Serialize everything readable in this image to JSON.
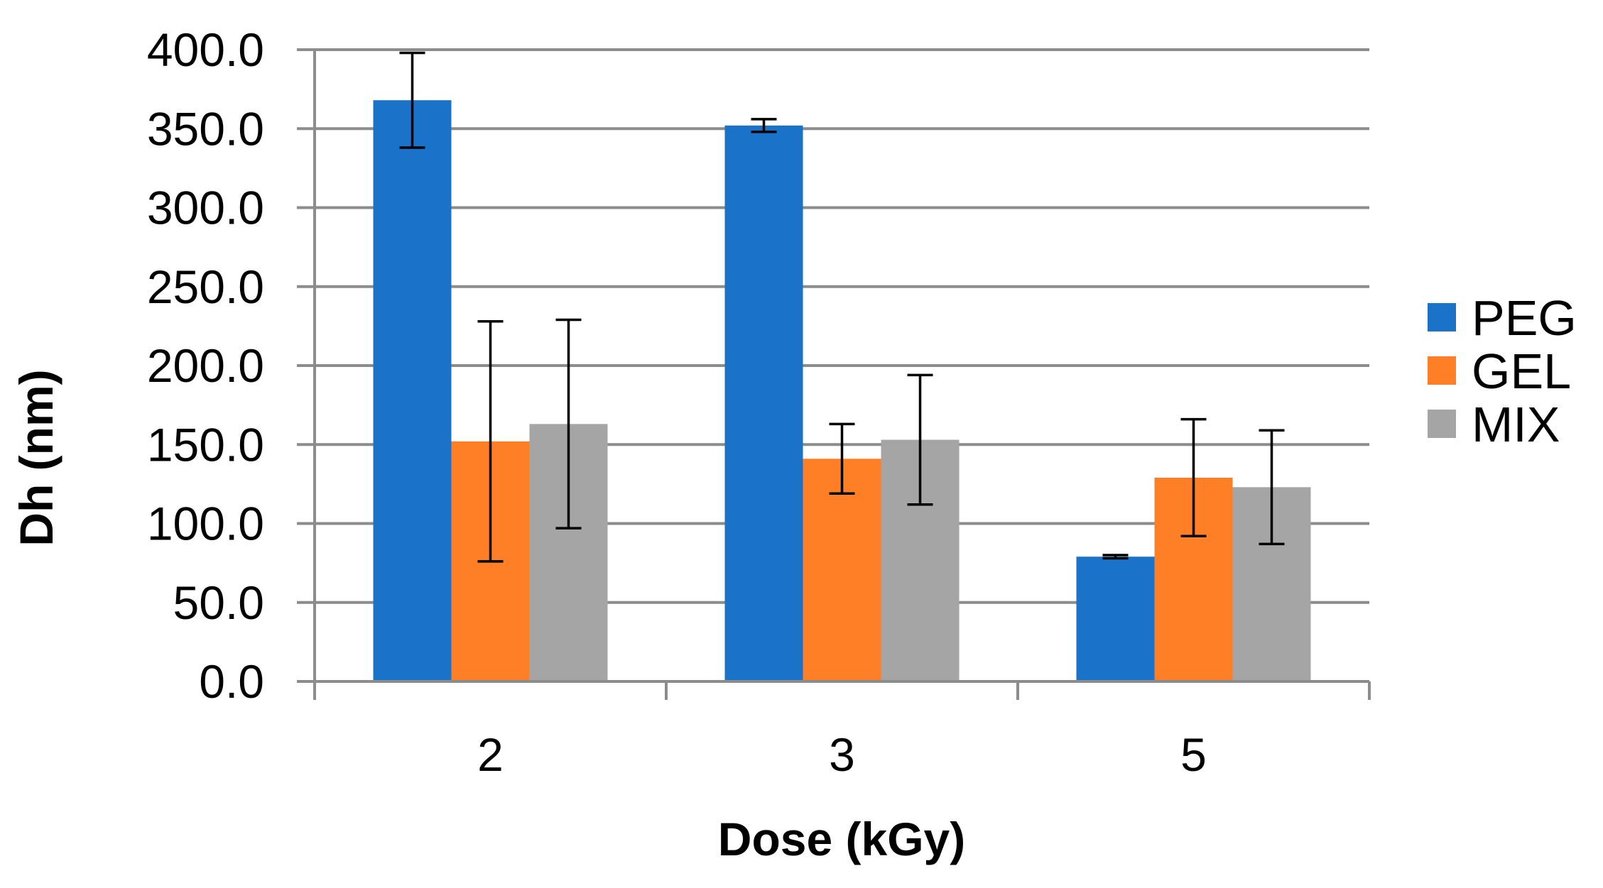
{
  "chart_data": {
    "type": "bar",
    "title": "",
    "xlabel": "Dose (kGy)",
    "ylabel": "Dh (nm)",
    "categories": [
      "2",
      "3",
      "5"
    ],
    "ylim": [
      0,
      400
    ],
    "ytick_step": 50,
    "ytick_labels": [
      "0.0",
      "50.0",
      "100.0",
      "150.0",
      "200.0",
      "250.0",
      "300.0",
      "350.0",
      "400.0"
    ],
    "grid": true,
    "legend_position": "right",
    "series": [
      {
        "name": "PEG",
        "color": "#1a73c8",
        "values": [
          368,
          352,
          79
        ],
        "errors": [
          30,
          4,
          1
        ]
      },
      {
        "name": "GEL",
        "color": "#ff7f27",
        "values": [
          152,
          141,
          129
        ],
        "errors": [
          76,
          22,
          37
        ]
      },
      {
        "name": "MIX",
        "color": "#a5a5a5",
        "values": [
          163,
          153,
          123
        ],
        "errors": [
          66,
          41,
          36
        ]
      }
    ]
  }
}
